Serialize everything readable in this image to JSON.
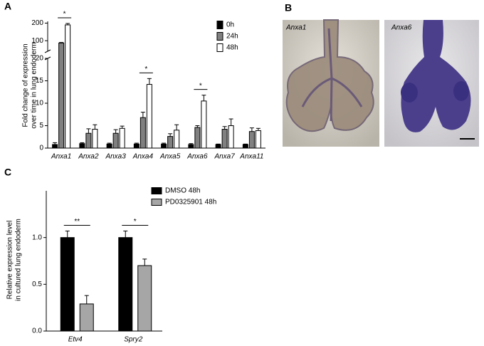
{
  "panel_labels": [
    "A",
    "B",
    "C"
  ],
  "images": [
    {
      "label": "Anxa1"
    },
    {
      "label": "Anxa6"
    }
  ],
  "chart_data": [
    {
      "type": "bar",
      "y_label": [
        "Fold change of expression",
        "over time in lung endoderm"
      ],
      "categories": [
        "Anxa1",
        "Anxa2",
        "Anxa3",
        "Anxa4",
        "Anxa5",
        "Anxa6",
        "Anxa7",
        "Anxa11"
      ],
      "series": [
        {
          "name": "0h",
          "color": "#000000",
          "values": [
            0.8,
            1.0,
            0.9,
            0.9,
            0.9,
            0.8,
            0.8,
            0.8
          ],
          "errors": [
            0.4,
            0.2,
            0.2,
            0.2,
            0.2,
            0.2,
            0.1,
            0.1
          ]
        },
        {
          "name": "24h",
          "color": "#808080",
          "values": [
            87,
            3.3,
            3.3,
            6.8,
            2.6,
            4.6,
            4.2,
            3.7
          ],
          "errors": [
            3,
            1.0,
            0.8,
            1.2,
            0.6,
            0.4,
            0.6,
            0.8
          ]
        },
        {
          "name": "48h",
          "color": "#ffffff",
          "values": [
            190,
            4.2,
            4.4,
            14.2,
            4.0,
            10.5,
            5.0,
            3.9
          ],
          "errors": [
            8,
            1.0,
            0.5,
            1.3,
            1.2,
            1.3,
            1.5,
            0.5
          ]
        }
      ],
      "significance": [
        "*",
        null,
        null,
        "*",
        null,
        "*",
        null,
        null
      ],
      "ylim": [
        0,
        20
      ],
      "yticks": [
        0,
        5,
        10,
        15,
        20
      ],
      "upper_ylim": [
        40,
        210
      ],
      "upper_yticks": [
        100,
        200
      ],
      "axis_break": true,
      "legend": "upper right"
    },
    {
      "type": "bar",
      "y_label": [
        "Relative expression level",
        "in cultured lung endoderm"
      ],
      "categories": [
        "Etv4",
        "Spry2"
      ],
      "series": [
        {
          "name": "DMSO 48h",
          "color": "#000000",
          "values": [
            1.0,
            1.0
          ],
          "errors": [
            0.07,
            0.07
          ]
        },
        {
          "name": "PD0325901 48h",
          "color": "#a6a6a6",
          "values": [
            0.29,
            0.7
          ],
          "errors": [
            0.09,
            0.07
          ]
        }
      ],
      "significance": [
        "**",
        "*"
      ],
      "ylim": [
        0,
        1.5
      ],
      "yticks": [
        {
          "value": 0,
          "label": "0.0"
        },
        {
          "value": 0.5,
          "label": "0.5"
        },
        {
          "value": 1.0,
          "label": "1.0"
        }
      ],
      "legend": "upper right"
    }
  ]
}
